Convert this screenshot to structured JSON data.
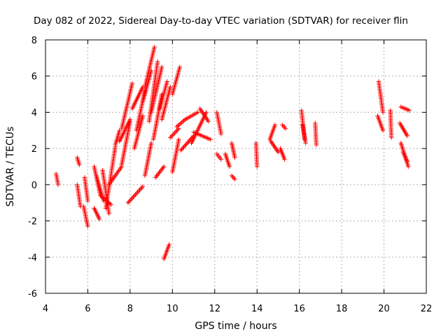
{
  "chart_data": {
    "type": "scatter",
    "title": "Day 082 of 2022, Sidereal Day-to-day VTEC variation (SDTVAR) for receiver flin",
    "xlabel": "GPS time / hours",
    "ylabel": "SDTVAR / TECUs",
    "xlim": [
      4,
      22
    ],
    "ylim": [
      -6,
      8
    ],
    "xticks": [
      4,
      6,
      8,
      10,
      12,
      14,
      16,
      18,
      20,
      22
    ],
    "yticks": [
      -6,
      -4,
      -2,
      0,
      2,
      4,
      6,
      8
    ],
    "grid": true,
    "marker": "+",
    "colors": {
      "series": "#ff0000",
      "grid": "#b0b0b0",
      "axis": "#000000"
    },
    "series": [
      {
        "name": "SDTVAR",
        "segments": [
          {
            "x": [
              4.5,
              4.6
            ],
            "y": [
              0.6,
              0.0
            ]
          },
          {
            "x": [
              5.5,
              5.6
            ],
            "y": [
              1.5,
              1.1
            ]
          },
          {
            "x": [
              5.5,
              5.65
            ],
            "y": [
              0.0,
              -1.2
            ]
          },
          {
            "x": [
              5.8,
              6.0
            ],
            "y": [
              -1.2,
              -2.3
            ]
          },
          {
            "x": [
              5.85,
              6.0
            ],
            "y": [
              0.4,
              -0.9
            ]
          },
          {
            "x": [
              6.3,
              6.55
            ],
            "y": [
              -1.3,
              -1.9
            ]
          },
          {
            "x": [
              6.3,
              6.6
            ],
            "y": [
              1.0,
              -0.6
            ]
          },
          {
            "x": [
              6.4,
              6.75
            ],
            "y": [
              0.5,
              -0.9
            ]
          },
          {
            "x": [
              6.7,
              7.0
            ],
            "y": [
              0.8,
              -1.6
            ]
          },
          {
            "x": [
              6.6,
              7.1
            ],
            "y": [
              -0.6,
              -1.1
            ]
          },
          {
            "x": [
              6.85,
              7.3
            ],
            "y": [
              -1.3,
              2.1
            ]
          },
          {
            "x": [
              7.0,
              7.6
            ],
            "y": [
              0.0,
              1.0
            ]
          },
          {
            "x": [
              7.3,
              7.5
            ],
            "y": [
              2.2,
              3.0
            ]
          },
          {
            "x": [
              7.5,
              8.0
            ],
            "y": [
              2.4,
              3.6
            ]
          },
          {
            "x": [
              7.6,
              8.1
            ],
            "y": [
              3.1,
              5.6
            ]
          },
          {
            "x": [
              7.6,
              8.0
            ],
            "y": [
              1.1,
              3.5
            ]
          },
          {
            "x": [
              7.9,
              8.6
            ],
            "y": [
              -1.0,
              -0.1
            ]
          },
          {
            "x": [
              8.2,
              8.6
            ],
            "y": [
              2.0,
              3.8
            ]
          },
          {
            "x": [
              8.1,
              8.6
            ],
            "y": [
              4.2,
              5.4
            ]
          },
          {
            "x": [
              8.3,
              8.7
            ],
            "y": [
              3.0,
              5.2
            ]
          },
          {
            "x": [
              8.6,
              9.0
            ],
            "y": [
              4.6,
              6.3
            ]
          },
          {
            "x": [
              8.7,
              9.15
            ],
            "y": [
              5.4,
              7.6
            ]
          },
          {
            "x": [
              8.7,
              9.0
            ],
            "y": [
              0.5,
              2.3
            ]
          },
          {
            "x": [
              8.9,
              9.3
            ],
            "y": [
              3.5,
              6.8
            ]
          },
          {
            "x": [
              9.0,
              9.5
            ],
            "y": [
              4.0,
              6.5
            ]
          },
          {
            "x": [
              9.1,
              9.5
            ],
            "y": [
              2.5,
              5.0
            ]
          },
          {
            "x": [
              9.2,
              9.6
            ],
            "y": [
              0.4,
              1.0
            ]
          },
          {
            "x": [
              9.4,
              9.75
            ],
            "y": [
              4.2,
              5.7
            ]
          },
          {
            "x": [
              9.5,
              9.9
            ],
            "y": [
              3.6,
              5.4
            ]
          },
          {
            "x": [
              9.6,
              9.85
            ],
            "y": [
              -4.1,
              -3.3
            ]
          },
          {
            "x": [
              9.9,
              10.3
            ],
            "y": [
              2.6,
              3.1
            ]
          },
          {
            "x": [
              10.0,
              10.35
            ],
            "y": [
              5.0,
              6.5
            ]
          },
          {
            "x": [
              10.0,
              10.3
            ],
            "y": [
              0.7,
              2.5
            ]
          },
          {
            "x": [
              10.2,
              10.6
            ],
            "y": [
              3.2,
              3.6
            ]
          },
          {
            "x": [
              10.4,
              11.0
            ],
            "y": [
              1.9,
              2.7
            ]
          },
          {
            "x": [
              10.6,
              11.2
            ],
            "y": [
              3.6,
              4.0
            ]
          },
          {
            "x": [
              10.9,
              11.6
            ],
            "y": [
              2.3,
              4.0
            ]
          },
          {
            "x": [
              11.0,
              11.8
            ],
            "y": [
              2.9,
              2.5
            ]
          },
          {
            "x": [
              11.3,
              11.7
            ],
            "y": [
              4.2,
              3.5
            ]
          },
          {
            "x": [
              12.1,
              12.3
            ],
            "y": [
              4.0,
              2.8
            ]
          },
          {
            "x": [
              12.1,
              12.3
            ],
            "y": [
              1.7,
              1.4
            ]
          },
          {
            "x": [
              12.5,
              12.7
            ],
            "y": [
              1.7,
              1.0
            ]
          },
          {
            "x": [
              12.8,
              12.95
            ],
            "y": [
              2.3,
              1.5
            ]
          },
          {
            "x": [
              12.8,
              12.95
            ],
            "y": [
              0.5,
              0.3
            ]
          },
          {
            "x": [
              13.95,
              14.0
            ],
            "y": [
              2.3,
              1.0
            ]
          },
          {
            "x": [
              14.6,
              14.85
            ],
            "y": [
              2.5,
              3.3
            ]
          },
          {
            "x": [
              14.65,
              15.0
            ],
            "y": [
              2.4,
              1.8
            ]
          },
          {
            "x": [
              15.2,
              15.35
            ],
            "y": [
              3.3,
              3.1
            ]
          },
          {
            "x": [
              15.1,
              15.3
            ],
            "y": [
              2.0,
              1.4
            ]
          },
          {
            "x": [
              16.1,
              16.25
            ],
            "y": [
              4.1,
              2.5
            ]
          },
          {
            "x": [
              16.15,
              16.3
            ],
            "y": [
              3.3,
              2.3
            ]
          },
          {
            "x": [
              16.75,
              16.8
            ],
            "y": [
              3.4,
              2.2
            ]
          },
          {
            "x": [
              19.75,
              19.95
            ],
            "y": [
              5.7,
              4.0
            ]
          },
          {
            "x": [
              19.7,
              19.95
            ],
            "y": [
              3.8,
              3.0
            ]
          },
          {
            "x": [
              20.3,
              20.35
            ],
            "y": [
              4.1,
              2.6
            ]
          },
          {
            "x": [
              20.8,
              21.2
            ],
            "y": [
              4.3,
              4.1
            ]
          },
          {
            "x": [
              20.75,
              21.1
            ],
            "y": [
              3.4,
              2.7
            ]
          },
          {
            "x": [
              20.8,
              21.15
            ],
            "y": [
              2.3,
              1.0
            ]
          },
          {
            "x": [
              20.9,
              21.1
            ],
            "y": [
              1.8,
              1.3
            ]
          }
        ]
      }
    ]
  }
}
